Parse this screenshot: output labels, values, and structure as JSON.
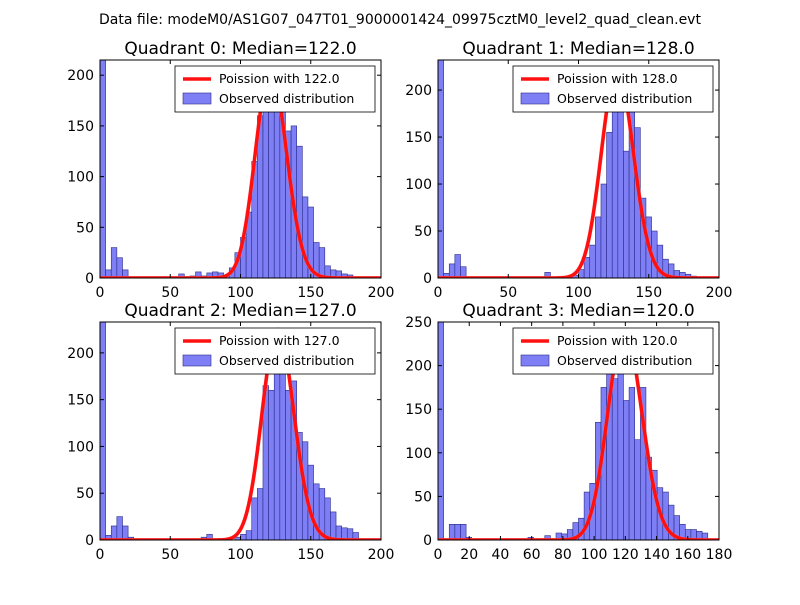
{
  "figure": {
    "suptitle": "Data file: modeM0/AS1G07_047T01_9000001424_09975cztM0_level2_quad_clean.evt"
  },
  "colors": {
    "bar_fill": "#7f7ff5",
    "bar_edge": "#2a2a8a",
    "poisson_line": "#ff1010",
    "poisson_line_faded": "#f7a0a0"
  },
  "chart_data": [
    {
      "type": "bar",
      "title": "Quadrant 0: Median=122.0",
      "legend": [
        "Poission with 122.0",
        "Observed distribution"
      ],
      "legend_placement": "top-right",
      "xlim": [
        0,
        200
      ],
      "ylim": [
        0,
        215
      ],
      "xticks": [
        0,
        50,
        100,
        150,
        200
      ],
      "yticks": [
        0,
        50,
        100,
        150,
        200
      ],
      "median": 122.0,
      "peak": 205,
      "bin_width": 4,
      "bins": [
        [
          0,
          215
        ],
        [
          4,
          8
        ],
        [
          8,
          30
        ],
        [
          12,
          20
        ],
        [
          16,
          8
        ],
        [
          56,
          4
        ],
        [
          64,
          2
        ],
        [
          68,
          6
        ],
        [
          72,
          2
        ],
        [
          76,
          5
        ],
        [
          80,
          6
        ],
        [
          84,
          5
        ],
        [
          88,
          3
        ],
        [
          92,
          10
        ],
        [
          96,
          25
        ],
        [
          100,
          40
        ],
        [
          104,
          65
        ],
        [
          108,
          115
        ],
        [
          112,
          160
        ],
        [
          116,
          175
        ],
        [
          120,
          185
        ],
        [
          124,
          195
        ],
        [
          128,
          165
        ],
        [
          132,
          145
        ],
        [
          136,
          150
        ],
        [
          140,
          130
        ],
        [
          144,
          80
        ],
        [
          148,
          70
        ],
        [
          152,
          35
        ],
        [
          156,
          30
        ],
        [
          160,
          12
        ],
        [
          164,
          8
        ],
        [
          168,
          7
        ],
        [
          172,
          4
        ],
        [
          176,
          3
        ]
      ]
    },
    {
      "type": "bar",
      "title": "Quadrant 1: Median=128.0",
      "legend": [
        "Poission with 128.0",
        "Observed distribution"
      ],
      "legend_placement": "top-right",
      "xlim": [
        0,
        200
      ],
      "ylim": [
        0,
        232
      ],
      "xticks": [
        0,
        50,
        100,
        150,
        200
      ],
      "yticks": [
        0,
        50,
        100,
        150,
        200
      ],
      "median": 128.0,
      "peak": 222,
      "bin_width": 4,
      "bins": [
        [
          0,
          232
        ],
        [
          4,
          5
        ],
        [
          8,
          15
        ],
        [
          12,
          25
        ],
        [
          16,
          12
        ],
        [
          76,
          6
        ],
        [
          96,
          3
        ],
        [
          100,
          9
        ],
        [
          104,
          22
        ],
        [
          108,
          35
        ],
        [
          112,
          65
        ],
        [
          116,
          100
        ],
        [
          120,
          155
        ],
        [
          124,
          185
        ],
        [
          128,
          200
        ],
        [
          132,
          135
        ],
        [
          136,
          180
        ],
        [
          140,
          160
        ],
        [
          144,
          85
        ],
        [
          148,
          65
        ],
        [
          152,
          50
        ],
        [
          156,
          35
        ],
        [
          160,
          20
        ],
        [
          164,
          15
        ],
        [
          168,
          8
        ],
        [
          172,
          6
        ],
        [
          176,
          4
        ],
        [
          180,
          2
        ]
      ]
    },
    {
      "type": "bar",
      "title": "Quadrant 2: Median=127.0",
      "legend": [
        "Poission with 127.0",
        "Observed distribution"
      ],
      "legend_placement": "top-right",
      "xlim": [
        0,
        200
      ],
      "ylim": [
        0,
        233
      ],
      "xticks": [
        0,
        50,
        100,
        150,
        200
      ],
      "yticks": [
        0,
        50,
        100,
        150,
        200
      ],
      "median": 127.0,
      "peak": 225,
      "bin_width": 4,
      "bins": [
        [
          0,
          233
        ],
        [
          4,
          5
        ],
        [
          8,
          15
        ],
        [
          12,
          25
        ],
        [
          16,
          15
        ],
        [
          20,
          3
        ],
        [
          72,
          3
        ],
        [
          76,
          6
        ],
        [
          96,
          3
        ],
        [
          100,
          6
        ],
        [
          104,
          10
        ],
        [
          108,
          45
        ],
        [
          112,
          55
        ],
        [
          116,
          165
        ],
        [
          120,
          160
        ],
        [
          124,
          185
        ],
        [
          128,
          200
        ],
        [
          132,
          160
        ],
        [
          136,
          170
        ],
        [
          140,
          115
        ],
        [
          144,
          105
        ],
        [
          148,
          80
        ],
        [
          152,
          60
        ],
        [
          156,
          55
        ],
        [
          160,
          45
        ],
        [
          164,
          30
        ],
        [
          168,
          15
        ],
        [
          172,
          13
        ],
        [
          176,
          12
        ],
        [
          180,
          8
        ]
      ]
    },
    {
      "type": "bar",
      "title": "Quadrant 3: Median=120.0",
      "legend": [
        "Poission with 120.0",
        "Observed distribution"
      ],
      "legend_placement": "top-right",
      "xlim": [
        0,
        180
      ],
      "ylim": [
        0,
        250
      ],
      "xticks": [
        0,
        20,
        40,
        60,
        80,
        100,
        120,
        140,
        160,
        180
      ],
      "yticks": [
        0,
        50,
        100,
        150,
        200,
        250
      ],
      "median": 120.0,
      "peak": 240,
      "bin_width": 3.6,
      "bins": [
        [
          0,
          250
        ],
        [
          7.2,
          18
        ],
        [
          10.8,
          18
        ],
        [
          14.4,
          18
        ],
        [
          18,
          3
        ],
        [
          57.6,
          3
        ],
        [
          68.4,
          5
        ],
        [
          75.6,
          8
        ],
        [
          79.2,
          7
        ],
        [
          82.8,
          12
        ],
        [
          86.4,
          20
        ],
        [
          90,
          25
        ],
        [
          93.6,
          55
        ],
        [
          97.2,
          65
        ],
        [
          100.8,
          135
        ],
        [
          104.4,
          175
        ],
        [
          108,
          195
        ],
        [
          111.6,
          185
        ],
        [
          115.2,
          215
        ],
        [
          118.8,
          160
        ],
        [
          122.4,
          175
        ],
        [
          126,
          115
        ],
        [
          129.6,
          175
        ],
        [
          133.2,
          95
        ],
        [
          136.8,
          80
        ],
        [
          140.4,
          60
        ],
        [
          144,
          55
        ],
        [
          147.6,
          40
        ],
        [
          151.2,
          28
        ],
        [
          154.8,
          18
        ],
        [
          158.4,
          12
        ],
        [
          162,
          12
        ],
        [
          165.6,
          10
        ],
        [
          169.2,
          8
        ]
      ]
    }
  ]
}
